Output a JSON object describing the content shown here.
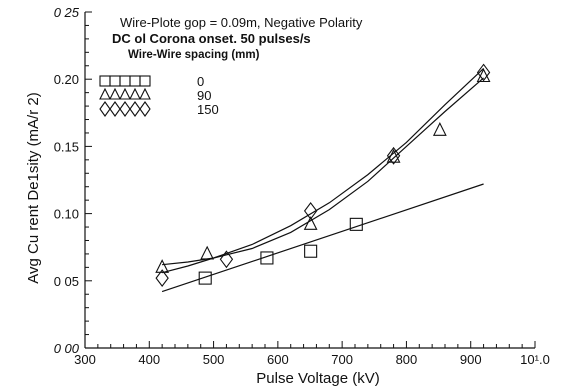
{
  "chart_data": {
    "type": "scatter",
    "annotations": {
      "line1": "Wire-Plote gop = 0.09m, Negative Polarity",
      "line2": "DC ol Corona onset. 50 pulses/s",
      "line3": "Wire-Wire spacing (mm)"
    },
    "xlabel": "Pulse Voltage (kV)",
    "ylabel": "Avg Cu rent De1sity (mA/r 2)",
    "xlim": [
      300,
      1000
    ],
    "ylim": [
      0.0,
      0.25
    ],
    "x_ticks": [
      {
        "value": 300,
        "label": "300"
      },
      {
        "value": 400,
        "label": "400"
      },
      {
        "value": 500,
        "label": "500"
      },
      {
        "value": 600,
        "label": "600"
      },
      {
        "value": 700,
        "label": "700"
      },
      {
        "value": 800,
        "label": "800"
      },
      {
        "value": 900,
        "label": "900"
      },
      {
        "value": 1000,
        "label": "10¹.0"
      }
    ],
    "y_ticks": [
      {
        "value": 0.0,
        "label": "0 00"
      },
      {
        "value": 0.05,
        "label": "0 05"
      },
      {
        "value": 0.1,
        "label": "0.10"
      },
      {
        "value": 0.15,
        "label": "0.15"
      },
      {
        "value": 0.2,
        "label": "0.20"
      },
      {
        "value": 0.25,
        "label": "0 25"
      }
    ],
    "legend_placement": "top-left",
    "series": [
      {
        "name": "0",
        "marker": "square",
        "points": [
          [
            487,
            0.052
          ],
          [
            583,
            0.067
          ],
          [
            651,
            0.072
          ],
          [
            722,
            0.092
          ]
        ],
        "fit": [
          [
            420,
            0.042
          ],
          [
            920,
            0.122
          ]
        ]
      },
      {
        "name": "90",
        "marker": "triangle",
        "points": [
          [
            420,
            0.06
          ],
          [
            490,
            0.07
          ],
          [
            651,
            0.092
          ],
          [
            780,
            0.142
          ],
          [
            852,
            0.162
          ],
          [
            920,
            0.202
          ]
        ],
        "fit": [
          [
            420,
            0.062
          ],
          [
            460,
            0.064
          ],
          [
            500,
            0.067
          ],
          [
            560,
            0.074
          ],
          [
            620,
            0.086
          ],
          [
            680,
            0.103
          ],
          [
            740,
            0.124
          ],
          [
            800,
            0.15
          ],
          [
            860,
            0.176
          ],
          [
            920,
            0.201
          ]
        ]
      },
      {
        "name": "150",
        "marker": "diamond",
        "points": [
          [
            420,
            0.052
          ],
          [
            520,
            0.066
          ],
          [
            651,
            0.102
          ],
          [
            780,
            0.143
          ],
          [
            920,
            0.205
          ]
        ],
        "fit": [
          [
            420,
            0.056
          ],
          [
            460,
            0.061
          ],
          [
            500,
            0.067
          ],
          [
            560,
            0.077
          ],
          [
            620,
            0.091
          ],
          [
            680,
            0.108
          ],
          [
            740,
            0.129
          ],
          [
            800,
            0.153
          ],
          [
            860,
            0.181
          ],
          [
            920,
            0.208
          ]
        ]
      }
    ]
  }
}
